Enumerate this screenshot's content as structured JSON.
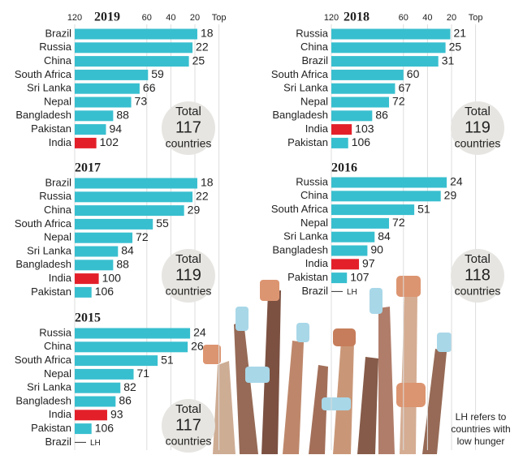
{
  "chart_data": [
    {
      "type": "bar",
      "title": "2019",
      "categories": [
        "Brazil",
        "Russia",
        "China",
        "South Africa",
        "Sri Lanka",
        "Nepal",
        "Bangladesh",
        "Pakistan",
        "India"
      ],
      "values": [
        18,
        22,
        25,
        59,
        66,
        73,
        88,
        94,
        102
      ],
      "colors": [
        "#38bfcf",
        "#38bfcf",
        "#38bfcf",
        "#38bfcf",
        "#38bfcf",
        "#38bfcf",
        "#38bfcf",
        "#38bfcf",
        "#e3202a"
      ],
      "xlim": [
        120,
        0
      ],
      "xticks": [
        120,
        60,
        40,
        20,
        {
          "value": 0,
          "label": "Top"
        }
      ],
      "grid": true,
      "total": {
        "label": "Total",
        "value": 117,
        "unit": "countries"
      }
    },
    {
      "type": "bar",
      "title": "2018",
      "categories": [
        "Russia",
        "China",
        "Brazil",
        "South Africa",
        "Sri Lanka",
        "Nepal",
        "Bangladesh",
        "India",
        "Pakistan"
      ],
      "values": [
        21,
        25,
        31,
        60,
        67,
        72,
        86,
        103,
        106
      ],
      "colors": [
        "#38bfcf",
        "#38bfcf",
        "#38bfcf",
        "#38bfcf",
        "#38bfcf",
        "#38bfcf",
        "#38bfcf",
        "#e3202a",
        "#38bfcf"
      ],
      "xlim": [
        120,
        0
      ],
      "xticks": [
        120,
        60,
        40,
        20,
        {
          "value": 0,
          "label": "Top"
        }
      ],
      "grid": true,
      "total": {
        "label": "Total",
        "value": 119,
        "unit": "countries"
      }
    },
    {
      "type": "bar",
      "title": "2017",
      "categories": [
        "Brazil",
        "Russia",
        "China",
        "South Africa",
        "Nepal",
        "Sri Lanka",
        "Bangladesh",
        "India",
        "Pakistan"
      ],
      "values": [
        18,
        22,
        29,
        55,
        72,
        84,
        88,
        100,
        106
      ],
      "colors": [
        "#38bfcf",
        "#38bfcf",
        "#38bfcf",
        "#38bfcf",
        "#38bfcf",
        "#38bfcf",
        "#38bfcf",
        "#e3202a",
        "#38bfcf"
      ],
      "xlim": [
        120,
        0
      ],
      "total": {
        "label": "Total",
        "value": 119,
        "unit": "countries"
      }
    },
    {
      "type": "bar",
      "title": "2016",
      "categories": [
        "Russia",
        "China",
        "South Africa",
        "Nepal",
        "Sri Lanka",
        "Bangladesh",
        "India",
        "Pakistan",
        "Brazil"
      ],
      "values": [
        24,
        29,
        51,
        72,
        84,
        90,
        97,
        107,
        null
      ],
      "value_labels": [
        "24",
        "29",
        "51",
        "72",
        "84",
        "90",
        "97",
        "107",
        "LH"
      ],
      "colors": [
        "#38bfcf",
        "#38bfcf",
        "#38bfcf",
        "#38bfcf",
        "#38bfcf",
        "#38bfcf",
        "#e3202a",
        "#38bfcf",
        "#38bfcf"
      ],
      "xlim": [
        120,
        0
      ],
      "total": {
        "label": "Total",
        "value": 118,
        "unit": "countries"
      }
    },
    {
      "type": "bar",
      "title": "2015",
      "categories": [
        "Russia",
        "China",
        "South Africa",
        "Nepal",
        "Sri Lanka",
        "Bangladesh",
        "India",
        "Pakistan",
        "Brazil"
      ],
      "values": [
        24,
        26,
        51,
        71,
        82,
        86,
        93,
        106,
        null
      ],
      "value_labels": [
        "24",
        "26",
        "51",
        "71",
        "82",
        "86",
        "93",
        "106",
        "LH"
      ],
      "colors": [
        "#38bfcf",
        "#38bfcf",
        "#38bfcf",
        "#38bfcf",
        "#38bfcf",
        "#38bfcf",
        "#e3202a",
        "#38bfcf",
        "#38bfcf"
      ],
      "xlim": [
        120,
        0
      ],
      "total": {
        "label": "Total",
        "value": 117,
        "unit": "countries"
      }
    }
  ],
  "note": [
    "LH refers to",
    "countries with",
    "low hunger"
  ]
}
